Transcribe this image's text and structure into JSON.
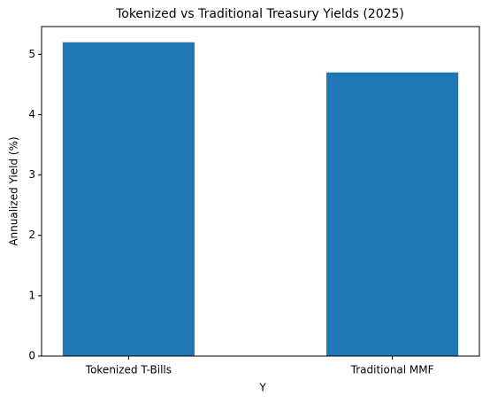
{
  "chart_data": {
    "type": "bar",
    "title": "Tokenized vs Traditional Treasury Yields (2025)",
    "x_label": "Y",
    "y_label": "Annualized Yield (%)",
    "categories": [
      "Tokenized T-Bills",
      "Traditional MMF"
    ],
    "values": [
      5.2,
      4.7
    ],
    "color": "#1f77b4",
    "ylim": [
      0,
      5.46
    ],
    "yticks": [
      0,
      1,
      2,
      3,
      4,
      5
    ],
    "grid": false
  }
}
